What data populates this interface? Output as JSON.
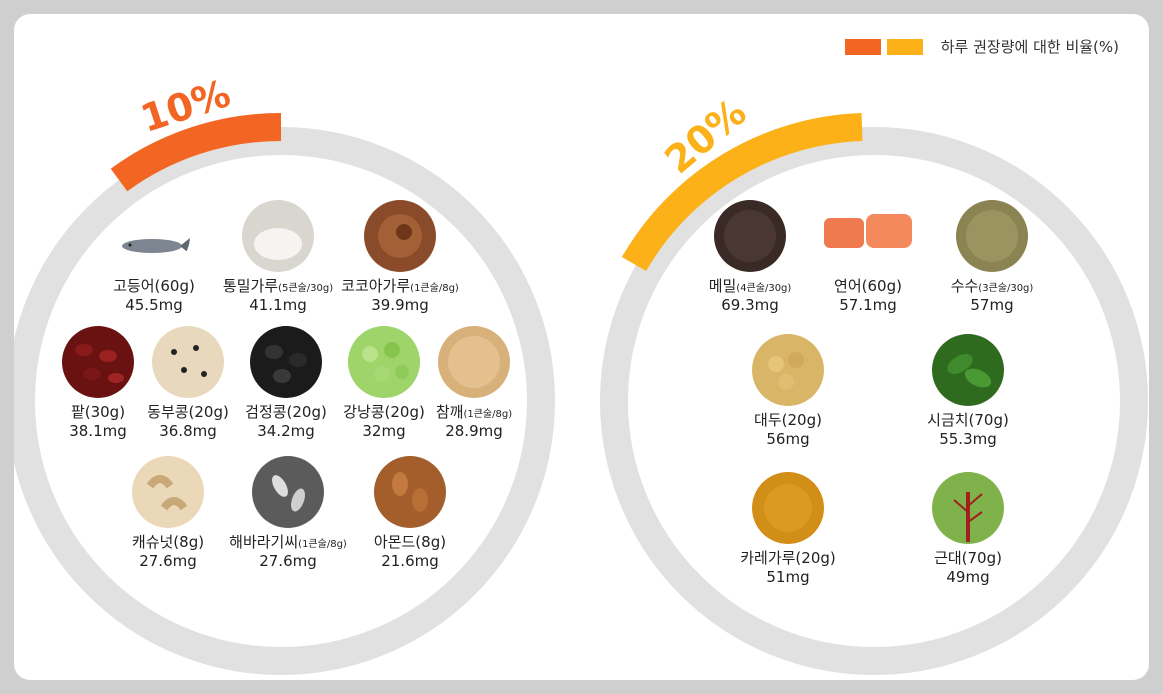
{
  "legend": {
    "label": "하루 권장량에 대한 비율(%)",
    "colors": [
      "#f26522",
      "#fbb117"
    ]
  },
  "groups": [
    {
      "percent": "10%",
      "color": "#f26522",
      "items": [
        {
          "name": "고등어(60g)",
          "amount": "",
          "value": "45.5mg",
          "icon": "mackerel-icon",
          "bg": "#ffffff"
        },
        {
          "name": "통밀가루",
          "amount": "(5큰술/30g)",
          "value": "41.1mg",
          "icon": "whole-wheat-flour-icon",
          "bg": "#d9d6cf"
        },
        {
          "name": "코코아가루",
          "amount": "(1큰술/8g)",
          "value": "39.9mg",
          "icon": "cocoa-powder-icon",
          "bg": "#8a4b2a"
        },
        {
          "name": "팥(30g)",
          "amount": "",
          "value": "38.1mg",
          "icon": "red-bean-icon",
          "bg": "#6a1212"
        },
        {
          "name": "동부콩(20g)",
          "amount": "",
          "value": "36.8mg",
          "icon": "cowpea-icon",
          "bg": "#e8d9bd"
        },
        {
          "name": "검정콩(20g)",
          "amount": "",
          "value": "34.2mg",
          "icon": "black-bean-icon",
          "bg": "#1b1b1b"
        },
        {
          "name": "강낭콩(20g)",
          "amount": "",
          "value": "32mg",
          "icon": "green-bean-icon",
          "bg": "#9ed46a"
        },
        {
          "name": "참깨",
          "amount": "(1큰술/8g)",
          "value": "28.9mg",
          "icon": "sesame-icon",
          "bg": "#d8b17a"
        },
        {
          "name": "캐슈넛(8g)",
          "amount": "",
          "value": "27.6mg",
          "icon": "cashew-icon",
          "bg": "#ead8b8"
        },
        {
          "name": "해바라기씨",
          "amount": "(1큰술/8g)",
          "value": "27.6mg",
          "icon": "sunflower-seed-icon",
          "bg": "#5b5b5b"
        },
        {
          "name": "아몬드(8g)",
          "amount": "",
          "value": "21.6mg",
          "icon": "almond-icon",
          "bg": "#a35e2c"
        }
      ]
    },
    {
      "percent": "20%",
      "color": "#fbb117",
      "items": [
        {
          "name": "메밀",
          "amount": "(4큰술/30g)",
          "value": "69.3mg",
          "icon": "buckwheat-icon",
          "bg": "#3a2a26"
        },
        {
          "name": "연어(60g)",
          "amount": "",
          "value": "57.1mg",
          "icon": "salmon-icon",
          "bg": "#ffffff"
        },
        {
          "name": "수수",
          "amount": "(3큰술/30g)",
          "value": "57mg",
          "icon": "sorghum-icon",
          "bg": "#8a8452"
        },
        {
          "name": "대두(20g)",
          "amount": "",
          "value": "56mg",
          "icon": "soybean-icon",
          "bg": "#d9b568"
        },
        {
          "name": "시금치(70g)",
          "amount": "",
          "value": "55.3mg",
          "icon": "spinach-icon",
          "bg": "#2f6b1f"
        },
        {
          "name": "카레가루(20g)",
          "amount": "",
          "value": "51mg",
          "icon": "curry-powder-icon",
          "bg": "#d28f17"
        },
        {
          "name": "근대(70g)",
          "amount": "",
          "value": "49mg",
          "icon": "chard-icon",
          "bg": "#7fb24a"
        }
      ]
    }
  ]
}
